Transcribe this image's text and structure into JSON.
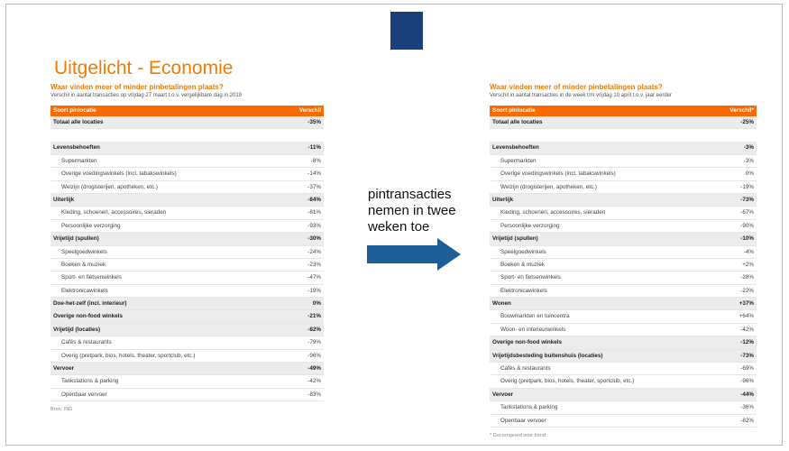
{
  "title": "Uitgelicht - Economie",
  "arrow_text": "pintransacties nemen in twee weken toe",
  "left": {
    "subtitle": "Waar vinden meer of minder pinbetalingen plaats?",
    "note": "Verschil in aantal transacties op vrijdag 27 maart t.o.v. vergelijkbare dag in 2019",
    "header": [
      "Soort pinlocatie",
      "Verschil"
    ],
    "rows": [
      {
        "label": "Totaal alle locaties",
        "value": "-35%",
        "bold": true,
        "gap_after": true
      },
      {
        "label": "Levensbehoeften",
        "value": "-11%",
        "bold": true
      },
      {
        "label": "Supermarkten",
        "value": "-8%"
      },
      {
        "label": "Overige voedingswinkels (incl. tabakswinkels)",
        "value": "-14%"
      },
      {
        "label": "Welzijn (drogisterijen, apotheken, etc.)",
        "value": "-37%"
      },
      {
        "label": "Uiterlijk",
        "value": "-84%",
        "bold": true
      },
      {
        "label": "Kleding, schoenen, accessoires, sieraden",
        "value": "-81%"
      },
      {
        "label": "Persoonlijke verzorging",
        "value": "-93%"
      },
      {
        "label": "Vrijetijd (spullen)",
        "value": "-30%",
        "bold": true
      },
      {
        "label": "Speelgoedwinkels",
        "value": "-24%"
      },
      {
        "label": "Boeken & muziek",
        "value": "-23%"
      },
      {
        "label": "Sport- en fietsenwinkels",
        "value": "-47%"
      },
      {
        "label": "Elektronicawinkels",
        "value": "-19%"
      },
      {
        "label": "Doe-het-zelf (incl. interieur)",
        "value": "0%",
        "bold": true
      },
      {
        "label": "Overige non-food winkels",
        "value": "-21%",
        "bold": true
      },
      {
        "label": "Vrijetijd (locaties)",
        "value": "-82%",
        "bold": true
      },
      {
        "label": "Cafés & restaurants",
        "value": "-79%"
      },
      {
        "label": "Overig (pretpark, bios, hotels, theater, sportclub, etc.)",
        "value": "-96%"
      },
      {
        "label": "Vervoer",
        "value": "-49%",
        "bold": true
      },
      {
        "label": "Tankstations & parking",
        "value": "-42%"
      },
      {
        "label": "Openbaar vervoer",
        "value": "-83%"
      }
    ],
    "source": "Bron: ING"
  },
  "right": {
    "subtitle": "Waar vinden meer of minder pinbetalingen plaats?",
    "note": "Verschil in aantal transacties in de week t/m vrijdag 10 april t.o.v. jaar eerder",
    "header": [
      "Soort pinlocatie",
      "Verschil*"
    ],
    "rows": [
      {
        "label": "Totaal alle locaties",
        "value": "-25%",
        "bold": true,
        "gap_after": true
      },
      {
        "label": "Levensbehoeften",
        "value": "-3%",
        "bold": true
      },
      {
        "label": "Supermarkten",
        "value": "-3%"
      },
      {
        "label": "Overige voedingswinkels (incl. tabakswinkels)",
        "value": "0%"
      },
      {
        "label": "Welzijn (drogisterijen, apotheken, etc.)",
        "value": "-19%"
      },
      {
        "label": "Uiterlijk",
        "value": "-73%",
        "bold": true
      },
      {
        "label": "Kleding, schoenen, accessoires, sieraden",
        "value": "-67%"
      },
      {
        "label": "Persoonlijke verzorging",
        "value": "-90%"
      },
      {
        "label": "Vrijetijd (spullen)",
        "value": "-10%",
        "bold": true
      },
      {
        "label": "Speelgoedwinkels",
        "value": "-4%"
      },
      {
        "label": "Boeken & muziek",
        "value": "+2%"
      },
      {
        "label": "Sport- en fietsenwinkels",
        "value": "-28%"
      },
      {
        "label": "Elektronicawinkels",
        "value": "-22%"
      },
      {
        "label": "Wonen",
        "value": "+37%",
        "bold": true
      },
      {
        "label": "Bouwmarkten en tuincentra",
        "value": "+64%"
      },
      {
        "label": "Woon- en interieurwinkels",
        "value": "-42%"
      },
      {
        "label": "Overige non-food winkels",
        "value": "-12%",
        "bold": true
      },
      {
        "label": "Vrijetijdsbesteding buitenshuis (locaties)",
        "value": "-73%",
        "bold": true
      },
      {
        "label": "Cafés & restaurants",
        "value": "-69%"
      },
      {
        "label": "Overig (pretpark, bios, hotels, theater, sportclub, etc.)",
        "value": "-96%"
      },
      {
        "label": "Vervoer",
        "value": "-44%",
        "bold": true
      },
      {
        "label": "Tankstations & parking",
        "value": "-36%"
      },
      {
        "label": "Openbaar vervoer",
        "value": "-82%"
      }
    ],
    "source": "* Gecorrigeerd voor trend"
  }
}
